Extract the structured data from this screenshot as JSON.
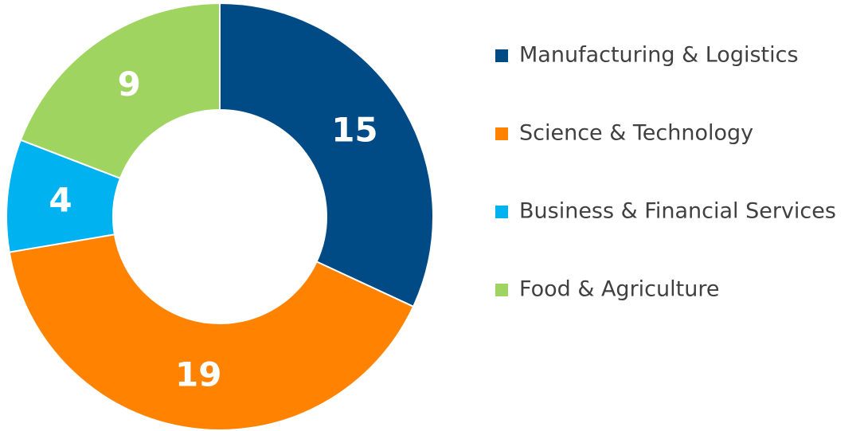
{
  "chart_data": {
    "type": "donut",
    "categories": [
      "Manufacturing & Logistics",
      "Science & Technology",
      "Business & Financial Services",
      "Food & Agriculture"
    ],
    "values": [
      15,
      19,
      4,
      9
    ],
    "colors": [
      "#004a86",
      "#ff8300",
      "#00b3f0",
      "#9fd460"
    ],
    "legend": "right"
  }
}
